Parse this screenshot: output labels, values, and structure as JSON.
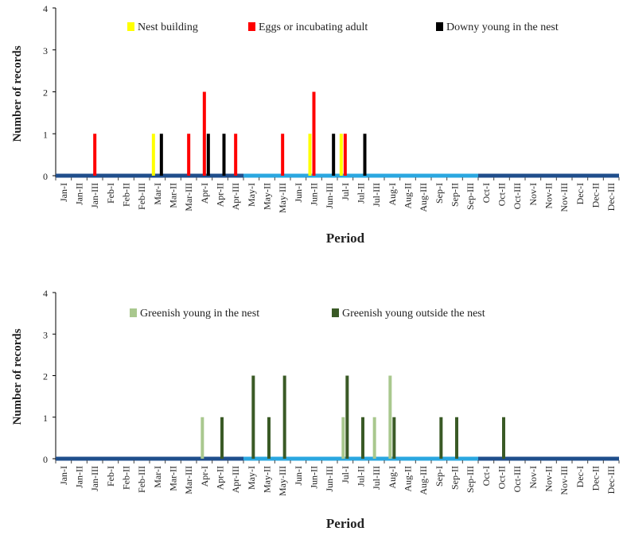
{
  "chart_data": [
    {
      "type": "bar",
      "xlabel": "Period",
      "ylabel": "Number of records",
      "ylim": [
        0,
        4
      ],
      "yticks": [
        0,
        1,
        2,
        3,
        4
      ],
      "legend_position": "top",
      "grid": false,
      "categories": [
        "Jan-I",
        "Jan-II",
        "Jan-III",
        "Feb-I",
        "Feb-II",
        "Feb-III",
        "Mar-I",
        "Mar-II",
        "Mar-III",
        "Apr-I",
        "Apr-II",
        "Apr-III",
        "May-I",
        "May-II",
        "May-III",
        "Jun-I",
        "Jun-II",
        "Jun-III",
        "Jul-I",
        "Jul-II",
        "Jul-III",
        "Aug-I",
        "Aug-II",
        "Aug-III",
        "Sep-I",
        "Sep-II",
        "Sep-III",
        "Oct-I",
        "Oct-II",
        "Oct-III",
        "Nov-I",
        "Nov-II",
        "Nov-III",
        "Dec-I",
        "Dec-II",
        "Dec-III"
      ],
      "series": [
        {
          "name": "Nest building",
          "color": "#ffff00",
          "values": [
            0,
            0,
            0,
            0,
            0,
            0,
            1,
            0,
            0,
            0,
            0,
            0,
            0,
            0,
            0,
            0,
            1,
            0,
            1,
            0,
            0,
            0,
            0,
            0,
            0,
            0,
            0,
            0,
            0,
            0,
            0,
            0,
            0,
            0,
            0,
            0
          ]
        },
        {
          "name": "Eggs or incubating adult",
          "color": "#ff0000",
          "values": [
            0,
            0,
            1,
            0,
            0,
            0,
            0,
            0,
            1,
            2,
            0,
            1,
            0,
            0,
            1,
            0,
            2,
            0,
            1,
            0,
            0,
            0,
            0,
            0,
            0,
            0,
            0,
            0,
            0,
            0,
            0,
            0,
            0,
            0,
            0,
            0
          ]
        },
        {
          "name": "Downy young in the nest",
          "color": "#000000",
          "values": [
            0,
            0,
            0,
            0,
            0,
            0,
            1,
            0,
            0,
            1,
            1,
            0,
            0,
            0,
            0,
            0,
            0,
            1,
            0,
            1,
            0,
            0,
            0,
            0,
            0,
            0,
            0,
            0,
            0,
            0,
            0,
            0,
            0,
            0,
            0,
            0
          ]
        }
      ]
    },
    {
      "type": "bar",
      "xlabel": "Period",
      "ylabel": "Number of records",
      "ylim": [
        0,
        4
      ],
      "yticks": [
        0,
        1,
        2,
        3,
        4
      ],
      "legend_position": "top",
      "grid": false,
      "categories": [
        "Jan-I",
        "Jan-II",
        "Jan-III",
        "Feb-I",
        "Feb-II",
        "Feb-III",
        "Mar-I",
        "Mar-II",
        "Mar-III",
        "Apr-I",
        "Apr-II",
        "Apr-III",
        "May-I",
        "May-II",
        "May-III",
        "Jun-I",
        "Jun-II",
        "Jun-III",
        "Jul-I",
        "Jul-II",
        "Jul-III",
        "Aug-I",
        "Aug-II",
        "Aug-III",
        "Sep-I",
        "Sep-II",
        "Sep-III",
        "Oct-I",
        "Oct-II",
        "Oct-III",
        "Nov-I",
        "Nov-II",
        "Nov-III",
        "Dec-I",
        "Dec-II",
        "Dec-III"
      ],
      "series": [
        {
          "name": "Greenish young in the nest",
          "color": "#a9c88e",
          "values": [
            0,
            0,
            0,
            0,
            0,
            0,
            0,
            0,
            0,
            1,
            0,
            0,
            0,
            0,
            0,
            0,
            0,
            0,
            1,
            0,
            1,
            2,
            0,
            0,
            0,
            0,
            0,
            0,
            0,
            0,
            0,
            0,
            0,
            0,
            0,
            0
          ]
        },
        {
          "name": "Greenish young outside the nest",
          "color": "#3a5a26",
          "values": [
            0,
            0,
            0,
            0,
            0,
            0,
            0,
            0,
            0,
            0,
            1,
            0,
            2,
            1,
            2,
            0,
            0,
            0,
            2,
            1,
            0,
            1,
            0,
            0,
            1,
            1,
            0,
            0,
            1,
            0,
            0,
            0,
            0,
            0,
            0,
            0
          ]
        }
      ]
    }
  ],
  "season_band_colors": [
    "#1f4e8c",
    "#2aa7e0",
    "#1f4e8c"
  ]
}
